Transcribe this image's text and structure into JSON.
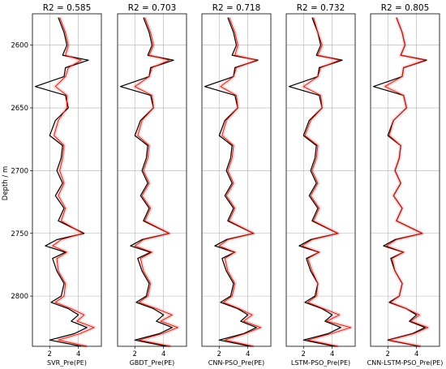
{
  "figure": {
    "ylabel": "Depth / m",
    "ylim": [
      2840,
      2575
    ],
    "yticks": [
      2600,
      2650,
      2700,
      2750,
      2800
    ],
    "xlim": [
      0.8,
      5.6
    ],
    "xticks": [
      2,
      4
    ],
    "colors": {
      "measured": "#000000",
      "predicted": "#cc2200",
      "band": "#ff9aa8",
      "point": "#22aa22"
    }
  },
  "chart_data": [
    {
      "type": "line",
      "title": "R2 = 0.585",
      "xlabel": "SVR_Pre(PE)",
      "ylabel": "Depth / m",
      "xlim": [
        0.8,
        5.6
      ],
      "ylim": [
        2840,
        2575
      ],
      "grid": true,
      "series": [
        {
          "role": "measured",
          "depth": [
            2578,
            2590,
            2600,
            2608,
            2612,
            2618,
            2625,
            2633,
            2640,
            2650,
            2660,
            2672,
            2680,
            2690,
            2700,
            2710,
            2720,
            2730,
            2740,
            2750,
            2755,
            2760,
            2765,
            2770,
            2780,
            2790,
            2800,
            2805,
            2810,
            2815,
            2820,
            2825,
            2830,
            2835,
            2840
          ],
          "value": [
            2.6,
            3.0,
            3.2,
            2.9,
            4.7,
            3.1,
            3.0,
            1.0,
            3.1,
            3.3,
            2.4,
            2.0,
            2.9,
            2.8,
            2.5,
            2.9,
            2.4,
            3.0,
            2.6,
            4.4,
            2.5,
            1.7,
            3.1,
            2.2,
            2.5,
            3.0,
            2.8,
            2.1,
            3.3,
            4.0,
            3.5,
            4.6,
            3.7,
            2.0,
            4.2
          ]
        },
        {
          "role": "predicted",
          "depth": [
            2578,
            2590,
            2600,
            2608,
            2612,
            2618,
            2625,
            2633,
            2640,
            2650,
            2660,
            2672,
            2680,
            2690,
            2700,
            2710,
            2720,
            2730,
            2740,
            2750,
            2755,
            2760,
            2765,
            2770,
            2780,
            2790,
            2800,
            2805,
            2810,
            2815,
            2820,
            2825,
            2830,
            2835,
            2840
          ],
          "value": [
            2.7,
            3.1,
            3.3,
            3.1,
            4.2,
            3.3,
            3.1,
            2.4,
            3.2,
            3.2,
            2.6,
            2.3,
            3.0,
            2.9,
            2.7,
            3.0,
            2.6,
            3.1,
            2.8,
            4.3,
            2.8,
            2.2,
            3.2,
            2.5,
            2.6,
            3.1,
            3.0,
            2.4,
            3.5,
            4.4,
            3.9,
            5.1,
            4.1,
            2.6,
            4.6
          ]
        }
      ]
    },
    {
      "type": "line",
      "title": "R2 = 0.703",
      "xlabel": "GBDT_Pre(PE)",
      "ylabel": "",
      "xlim": [
        0.8,
        5.6
      ],
      "ylim": [
        2840,
        2575
      ],
      "grid": true,
      "series": [
        {
          "role": "measured",
          "depth": [
            2578,
            2590,
            2600,
            2608,
            2612,
            2618,
            2625,
            2633,
            2640,
            2650,
            2660,
            2672,
            2680,
            2690,
            2700,
            2710,
            2720,
            2730,
            2740,
            2750,
            2755,
            2760,
            2765,
            2770,
            2780,
            2790,
            2800,
            2805,
            2810,
            2815,
            2820,
            2825,
            2830,
            2835,
            2840
          ],
          "value": [
            2.6,
            3.0,
            3.2,
            2.9,
            4.7,
            3.1,
            3.0,
            1.0,
            3.1,
            3.3,
            2.4,
            2.0,
            2.9,
            2.8,
            2.5,
            2.9,
            2.4,
            3.0,
            2.6,
            4.4,
            2.5,
            1.7,
            3.1,
            2.2,
            2.5,
            3.0,
            2.8,
            2.1,
            3.3,
            4.0,
            3.5,
            4.6,
            3.7,
            2.0,
            4.2
          ]
        },
        {
          "role": "predicted",
          "depth": [
            2578,
            2590,
            2600,
            2608,
            2612,
            2618,
            2625,
            2633,
            2640,
            2650,
            2660,
            2672,
            2680,
            2690,
            2700,
            2710,
            2720,
            2730,
            2740,
            2750,
            2755,
            2760,
            2765,
            2770,
            2780,
            2790,
            2800,
            2805,
            2810,
            2815,
            2820,
            2825,
            2830,
            2835,
            2840
          ],
          "value": [
            2.7,
            3.1,
            3.3,
            3.0,
            4.4,
            3.2,
            3.0,
            2.0,
            3.2,
            3.3,
            2.5,
            2.2,
            3.0,
            2.9,
            2.6,
            3.0,
            2.5,
            3.1,
            2.7,
            4.4,
            2.6,
            2.0,
            3.2,
            2.4,
            2.6,
            3.1,
            2.9,
            2.3,
            3.5,
            4.6,
            3.8,
            5.0,
            3.9,
            2.3,
            4.5
          ]
        }
      ]
    },
    {
      "type": "line",
      "title": "R2 = 0.718",
      "xlabel": "CNN-PSO_Pre(PE)",
      "ylabel": "",
      "xlim": [
        0.8,
        5.6
      ],
      "ylim": [
        2840,
        2575
      ],
      "grid": true,
      "series": [
        {
          "role": "measured",
          "depth": [
            2578,
            2590,
            2600,
            2608,
            2612,
            2618,
            2625,
            2633,
            2640,
            2650,
            2660,
            2672,
            2680,
            2690,
            2700,
            2710,
            2720,
            2730,
            2740,
            2750,
            2755,
            2760,
            2765,
            2770,
            2780,
            2790,
            2800,
            2805,
            2810,
            2815,
            2820,
            2825,
            2830,
            2835,
            2840
          ],
          "value": [
            2.6,
            3.0,
            3.2,
            2.9,
            4.7,
            3.1,
            3.0,
            1.0,
            3.1,
            3.3,
            2.4,
            2.0,
            2.9,
            2.8,
            2.5,
            2.9,
            2.4,
            3.0,
            2.6,
            4.4,
            2.5,
            1.7,
            3.1,
            2.2,
            2.5,
            3.0,
            2.8,
            2.1,
            3.3,
            4.0,
            3.5,
            4.6,
            3.7,
            2.0,
            4.2
          ]
        },
        {
          "role": "predicted",
          "depth": [
            2578,
            2590,
            2600,
            2608,
            2612,
            2618,
            2625,
            2633,
            2640,
            2650,
            2660,
            2672,
            2680,
            2690,
            2700,
            2710,
            2720,
            2730,
            2740,
            2750,
            2755,
            2760,
            2765,
            2770,
            2780,
            2790,
            2800,
            2805,
            2810,
            2815,
            2820,
            2825,
            2830,
            2835,
            2840
          ],
          "value": [
            2.7,
            3.1,
            3.3,
            3.1,
            4.6,
            3.2,
            3.0,
            2.1,
            3.2,
            3.3,
            2.5,
            2.2,
            3.0,
            2.9,
            2.6,
            3.0,
            2.5,
            3.1,
            2.7,
            4.4,
            2.6,
            2.0,
            3.1,
            2.4,
            2.6,
            3.1,
            2.9,
            2.3,
            3.4,
            4.3,
            3.7,
            4.9,
            3.8,
            2.4,
            4.4
          ]
        }
      ]
    },
    {
      "type": "line",
      "title": "R2 = 0.732",
      "xlabel": "LSTM-PSO_Pre(PE)",
      "ylabel": "",
      "xlim": [
        0.8,
        5.6
      ],
      "ylim": [
        2840,
        2575
      ],
      "grid": true,
      "series": [
        {
          "role": "measured",
          "depth": [
            2578,
            2590,
            2600,
            2608,
            2612,
            2618,
            2625,
            2633,
            2640,
            2650,
            2660,
            2672,
            2680,
            2690,
            2700,
            2710,
            2720,
            2730,
            2740,
            2750,
            2755,
            2760,
            2765,
            2770,
            2780,
            2790,
            2800,
            2805,
            2810,
            2815,
            2820,
            2825,
            2830,
            2835,
            2840
          ],
          "value": [
            2.6,
            3.0,
            3.2,
            2.9,
            4.7,
            3.1,
            3.0,
            1.0,
            3.1,
            3.3,
            2.4,
            2.0,
            2.9,
            2.8,
            2.5,
            2.9,
            2.4,
            3.0,
            2.6,
            4.4,
            2.5,
            1.7,
            3.1,
            2.2,
            2.5,
            3.0,
            2.8,
            2.1,
            3.3,
            4.0,
            3.5,
            4.6,
            3.7,
            2.0,
            4.2
          ]
        },
        {
          "role": "predicted",
          "depth": [
            2578,
            2590,
            2600,
            2608,
            2612,
            2618,
            2625,
            2633,
            2640,
            2650,
            2660,
            2672,
            2680,
            2690,
            2700,
            2710,
            2720,
            2730,
            2740,
            2750,
            2755,
            2760,
            2765,
            2770,
            2780,
            2790,
            2800,
            2805,
            2810,
            2815,
            2820,
            2825,
            2830,
            2835,
            2840
          ],
          "value": [
            2.7,
            3.0,
            3.3,
            3.0,
            4.5,
            3.2,
            3.0,
            2.0,
            3.2,
            3.3,
            2.5,
            2.1,
            3.0,
            2.9,
            2.6,
            3.0,
            2.5,
            3.1,
            2.7,
            4.4,
            2.6,
            1.9,
            3.1,
            2.3,
            2.6,
            3.0,
            2.9,
            2.3,
            3.4,
            4.5,
            3.6,
            5.3,
            3.9,
            2.3,
            4.4
          ]
        }
      ]
    },
    {
      "type": "line",
      "title": "R2 = 0.805",
      "xlabel": "CNN-LSTM-PSO_Pre(PE)",
      "ylabel": "",
      "xlim": [
        0.8,
        5.6
      ],
      "ylim": [
        2840,
        2575
      ],
      "grid": true,
      "series": [
        {
          "role": "measured",
          "depth": [
            2578,
            2590,
            2600,
            2608,
            2612,
            2618,
            2625,
            2633,
            2640,
            2650,
            2660,
            2672,
            2680,
            2690,
            2700,
            2710,
            2720,
            2730,
            2740,
            2750,
            2755,
            2760,
            2765,
            2770,
            2780,
            2790,
            2800,
            2805,
            2810,
            2815,
            2820,
            2825,
            2830,
            2835,
            2840
          ],
          "value": [
            2.6,
            3.0,
            3.2,
            2.9,
            4.7,
            3.1,
            3.0,
            1.0,
            3.1,
            3.3,
            2.4,
            2.0,
            2.9,
            2.8,
            2.5,
            2.9,
            2.4,
            3.0,
            2.6,
            4.4,
            2.5,
            1.7,
            3.1,
            2.2,
            2.5,
            3.0,
            2.8,
            2.1,
            3.3,
            4.0,
            3.5,
            4.6,
            3.7,
            2.0,
            4.2
          ]
        },
        {
          "role": "predicted",
          "depth": [
            2578,
            2590,
            2600,
            2608,
            2612,
            2618,
            2625,
            2633,
            2640,
            2650,
            2660,
            2672,
            2680,
            2690,
            2700,
            2710,
            2720,
            2730,
            2740,
            2750,
            2755,
            2760,
            2765,
            2770,
            2780,
            2790,
            2800,
            2805,
            2810,
            2815,
            2820,
            2825,
            2830,
            2835,
            2840
          ],
          "value": [
            2.6,
            3.0,
            3.2,
            2.9,
            4.6,
            3.1,
            3.0,
            1.8,
            3.1,
            3.3,
            2.4,
            2.1,
            2.9,
            2.8,
            2.5,
            2.9,
            2.4,
            3.0,
            2.6,
            4.4,
            2.6,
            1.9,
            3.1,
            2.3,
            2.5,
            3.0,
            2.8,
            2.2,
            3.3,
            4.2,
            3.6,
            4.8,
            3.8,
            2.1,
            4.3
          ]
        }
      ]
    }
  ]
}
